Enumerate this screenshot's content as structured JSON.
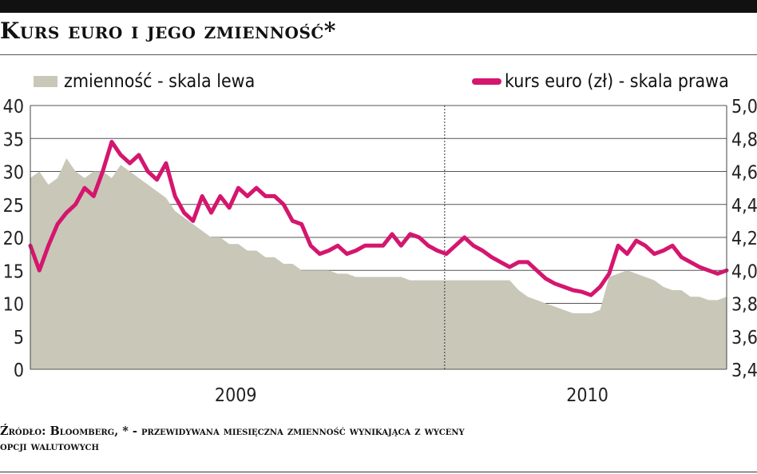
{
  "title": "Kurs euro i jego zmienność*",
  "footnote": {
    "line1": "Źródło: Bloomberg, * - przewidywana miesięczna zmienność wynikająca z wyceny",
    "line2": "opcji walutowych"
  },
  "colors": {
    "area": "#c9c7b8",
    "line": "#d4166e",
    "grid": "#555555",
    "background": "#ffffff"
  },
  "chart_data": {
    "type": "area",
    "legend": [
      {
        "name": "zmienność - skala lewa",
        "kind": "area",
        "axis": "left"
      },
      {
        "name": "kurs euro (zł) - skala prawa",
        "kind": "line",
        "axis": "right"
      }
    ],
    "legend_placement": "top",
    "grid": true,
    "left_axis": {
      "min": 0,
      "max": 40,
      "ticks": [
        "0",
        "5",
        "10",
        "15",
        "20",
        "25",
        "30",
        "35",
        "40"
      ]
    },
    "right_axis": {
      "min": 3.4,
      "max": 5.0,
      "ticks": [
        "3,4",
        "3,6",
        "3,8",
        "4,0",
        "4,2",
        "4,4",
        "4,6",
        "4,8",
        "5,0"
      ]
    },
    "x_labels": [
      "2009",
      "2010"
    ],
    "divider": "between 2009 and 2010",
    "series": [
      {
        "name": "zmienność - skala lewa",
        "axis": "left",
        "values": [
          29,
          30,
          28,
          29,
          32,
          30,
          29,
          30,
          30,
          29,
          31,
          30,
          29,
          28,
          27,
          26,
          24,
          23,
          22,
          21,
          20,
          20,
          19,
          19,
          18,
          18,
          17,
          17,
          16,
          16,
          15,
          15,
          15,
          15,
          14.5,
          14.5,
          14,
          14,
          14,
          14,
          14,
          14,
          13.5,
          13.5,
          13.5,
          13.5,
          13.5,
          13.5,
          13.5,
          13.5,
          13.5,
          13.5,
          13.5,
          13.5,
          12,
          11,
          10.5,
          10,
          9.5,
          9,
          8.5,
          8.5,
          8.5,
          9,
          14,
          14.5,
          15,
          14.5,
          14,
          13.5,
          12.5,
          12,
          12,
          11,
          11,
          10.5,
          10.5,
          11
        ]
      },
      {
        "name": "kurs euro (zł) - skala prawa",
        "axis": "right",
        "values": [
          4.15,
          4.0,
          4.15,
          4.28,
          4.35,
          4.4,
          4.5,
          4.45,
          4.6,
          4.78,
          4.7,
          4.65,
          4.7,
          4.6,
          4.55,
          4.65,
          4.45,
          4.35,
          4.3,
          4.45,
          4.35,
          4.45,
          4.38,
          4.5,
          4.45,
          4.5,
          4.45,
          4.45,
          4.4,
          4.3,
          4.28,
          4.15,
          4.1,
          4.12,
          4.15,
          4.1,
          4.12,
          4.15,
          4.15,
          4.15,
          4.22,
          4.15,
          4.22,
          4.2,
          4.15,
          4.12,
          4.1,
          4.15,
          4.2,
          4.15,
          4.12,
          4.08,
          4.05,
          4.02,
          4.05,
          4.05,
          4.0,
          3.95,
          3.92,
          3.9,
          3.88,
          3.87,
          3.85,
          3.9,
          3.98,
          4.15,
          4.1,
          4.18,
          4.15,
          4.1,
          4.12,
          4.15,
          4.08,
          4.05,
          4.02,
          4.0,
          3.98,
          4.0
        ]
      }
    ]
  }
}
